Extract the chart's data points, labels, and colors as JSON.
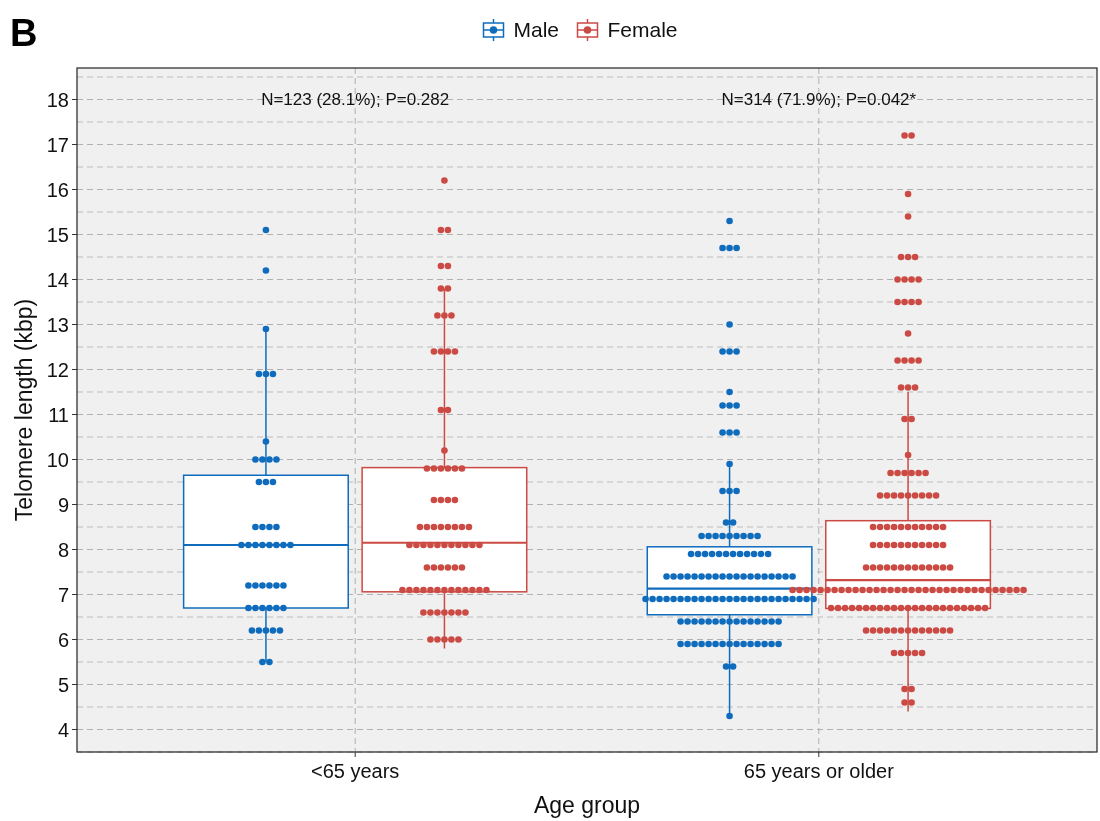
{
  "chart_data": {
    "type": "box",
    "xlabel": "Age group",
    "ylabel": "Telomere length (kbp)",
    "categories": [
      "<65 years",
      "65 years or older"
    ],
    "ylim": [
      3.5,
      18.7
    ],
    "yticks": [
      4,
      5,
      6,
      7,
      8,
      9,
      10,
      11,
      12,
      13,
      14,
      15,
      16,
      17,
      18
    ],
    "grid": true,
    "legend": "top",
    "annotations": [
      "B",
      "N=123 (28.1%); P=0.282",
      "N=314 (71.9%); P=0.042*"
    ],
    "series": [
      {
        "name": "Male",
        "color": "#0f6cbd",
        "boxes": [
          {
            "low": 5.5,
            "q1": 6.7,
            "median": 8.1,
            "q3": 9.65,
            "high": 12.9
          },
          {
            "low": 4.3,
            "q1": 6.55,
            "median": 7.13,
            "q3": 8.06,
            "high": 9.9
          }
        ]
      },
      {
        "name": "Female",
        "color": "#cc4a44",
        "boxes": [
          {
            "low": 5.8,
            "q1": 7.06,
            "median": 8.15,
            "q3": 9.82,
            "high": 13.8
          },
          {
            "low": 4.4,
            "q1": 6.69,
            "median": 7.32,
            "q3": 8.64,
            "high": 11.5
          }
        ]
      },
      {
        "type": "scatter",
        "color": "#0f6cbd",
        "x": [
          "<65 years",
          "<65 years",
          "<65 years",
          "<65 years",
          "<65 years",
          "<65 years",
          "<65 years",
          "<65 years",
          "<65 years",
          "<65 years",
          "<65 years",
          "<65 years",
          "<65 years",
          "<65 years",
          "<65 years",
          "<65 years",
          "<65 years",
          "<65 years",
          "<65 years",
          "<65 years",
          "<65 years",
          "<65 years",
          "<65 years",
          "<65 years",
          "<65 years",
          "<65 years",
          "<65 years",
          "<65 years",
          "<65 years",
          "<65 years",
          "<65 years",
          "<65 years",
          "<65 years",
          "<65 years",
          "<65 years",
          "<65 years",
          "<65 years",
          "<65 years",
          "<65 years",
          "<65 years",
          "<65 years",
          "<65 years",
          "<65 years",
          "<65 years",
          "<65 years",
          "65 years or older",
          "65 years or older",
          "65 years or older",
          "65 years or older",
          "65 years or older",
          "65 years or older",
          "65 years or older",
          "65 years or older",
          "65 years or older",
          "65 years or older",
          "65 years or older",
          "65 years or older",
          "65 years or older",
          "65 years or older",
          "65 years or older",
          "65 years or older",
          "65 years or older",
          "65 years or older",
          "65 years or older",
          "65 years or older",
          "65 years or older",
          "65 years or older",
          "65 years or older",
          "65 years or older",
          "65 years or older",
          "65 years or older",
          "65 years or older",
          "65 years or older",
          "65 years or older",
          "65 years or older",
          "65 years or older",
          "65 years or older",
          "65 years or older",
          "65 years or older",
          "65 years or older",
          "65 years or older",
          "65 years or older",
          "65 years or older",
          "65 years or older",
          "65 years or older",
          "65 years or older",
          "65 years or older",
          "65 years or older",
          "65 years or older",
          "65 years or older",
          "65 years or older",
          "65 years or older",
          "65 years or older",
          "65 years or older",
          "65 years or older",
          "65 years or older",
          "65 years or older",
          "65 years or older",
          "65 years or older",
          "65 years or older",
          "65 years or older",
          "65 years or older",
          "65 years or older",
          "65 years or older",
          "65 years or older",
          "65 years or older",
          "65 years or older",
          "65 years or older",
          "65 years or older",
          "65 years or older",
          "65 years or older",
          "65 years or older",
          "65 years or older",
          "65 years or older",
          "65 years or older",
          "65 years or older",
          "65 years or older",
          "65 years or older",
          "65 years or older",
          "65 years or older",
          "65 years or older",
          "65 years or older",
          "65 years or older",
          "65 years or older",
          "65 years or older",
          "65 years or older",
          "65 years or older",
          "65 years or older",
          "65 years or older",
          "65 years or older",
          "65 years or older",
          "65 years or older",
          "65 years or older",
          "65 years or older",
          "65 years or older",
          "65 years or older",
          "65 years or older",
          "65 years or older",
          "65 years or older",
          "65 years or older",
          "65 years or older",
          "65 years or older",
          "65 years or older",
          "65 years or older",
          "65 years or older",
          "65 years or older",
          "65 years or older",
          "65 years or older",
          "65 years or older",
          "65 years or older",
          "65 years or older",
          "65 years or older",
          "65 years or older",
          "65 years or older",
          "65 years or older",
          "65 years or older",
          "65 years or older",
          "65 years or older",
          "65 years or older",
          "65 years or older",
          "65 years or older",
          "65 years or older",
          "65 years or older",
          "65 years or older"
        ],
        "values": [
          15.1,
          14.2,
          12.9,
          11.9,
          11.9,
          11.9,
          10.4,
          10.0,
          10.0,
          10.0,
          10.0,
          9.5,
          9.5,
          9.5,
          8.5,
          8.5,
          8.5,
          8.5,
          8.1,
          8.1,
          8.1,
          8.1,
          8.1,
          8.1,
          8.1,
          8.1,
          7.2,
          7.2,
          7.2,
          7.2,
          7.2,
          7.2,
          6.7,
          6.7,
          6.7,
          6.7,
          6.7,
          6.7,
          6.2,
          6.2,
          6.2,
          6.2,
          6.2,
          5.5,
          5.5,
          15.3,
          14.7,
          14.7,
          14.7,
          13.0,
          12.4,
          12.4,
          12.4,
          11.5,
          11.2,
          11.2,
          11.2,
          10.6,
          10.6,
          10.6,
          9.9,
          9.3,
          9.3,
          9.3,
          8.6,
          8.6,
          8.3,
          8.3,
          8.3,
          8.3,
          8.3,
          8.3,
          8.3,
          8.3,
          8.3,
          7.9,
          7.9,
          7.9,
          7.9,
          7.9,
          7.9,
          7.9,
          7.9,
          7.9,
          7.9,
          7.9,
          7.9,
          7.4,
          7.4,
          7.4,
          7.4,
          7.4,
          7.4,
          7.4,
          7.4,
          7.4,
          7.4,
          7.4,
          7.4,
          7.4,
          7.4,
          7.4,
          7.4,
          7.4,
          7.4,
          7.4,
          6.9,
          6.9,
          6.9,
          6.9,
          6.9,
          6.9,
          6.9,
          6.9,
          6.9,
          6.9,
          6.9,
          6.9,
          6.9,
          6.9,
          6.9,
          6.9,
          6.9,
          6.9,
          6.9,
          6.9,
          6.9,
          6.9,
          6.9,
          6.9,
          6.9,
          6.4,
          6.4,
          6.4,
          6.4,
          6.4,
          6.4,
          6.4,
          6.4,
          6.4,
          6.4,
          6.4,
          6.4,
          6.4,
          6.4,
          6.4,
          5.9,
          5.9,
          5.9,
          5.9,
          5.9,
          5.9,
          5.9,
          5.9,
          5.9,
          5.9,
          5.9,
          5.9,
          5.9,
          5.9,
          5.9,
          5.4,
          5.4,
          4.3
        ]
      },
      {
        "type": "scatter",
        "color": "#cc4a44",
        "x": [
          "<65 years",
          "<65 years",
          "<65 years",
          "<65 years",
          "<65 years",
          "<65 years",
          "<65 years",
          "<65 years",
          "<65 years",
          "<65 years",
          "<65 years",
          "<65 years",
          "<65 years",
          "<65 years",
          "<65 years",
          "<65 years",
          "<65 years",
          "<65 years",
          "<65 years",
          "<65 years",
          "<65 years",
          "<65 years",
          "<65 years",
          "<65 years",
          "<65 years",
          "<65 years",
          "<65 years",
          "<65 years",
          "<65 years",
          "<65 years",
          "<65 years",
          "<65 years",
          "<65 years",
          "<65 years",
          "<65 years",
          "<65 years",
          "<65 years",
          "<65 years",
          "<65 years",
          "<65 years",
          "<65 years",
          "<65 years",
          "<65 years",
          "<65 years",
          "<65 years",
          "<65 years",
          "<65 years",
          "<65 years",
          "<65 years",
          "<65 years",
          "<65 years",
          "<65 years",
          "<65 years",
          "<65 years",
          "<65 years",
          "<65 years",
          "<65 years",
          "<65 years",
          "<65 years",
          "<65 years",
          "<65 years",
          "<65 years",
          "<65 years",
          "<65 years",
          "<65 years",
          "<65 years",
          "<65 years",
          "<65 years",
          "<65 years",
          "<65 years",
          "<65 years",
          "<65 years",
          "<65 years",
          "<65 years",
          "<65 years",
          "<65 years",
          "<65 years",
          "65 years or older",
          "65 years or older",
          "65 years or older",
          "65 years or older",
          "65 years or older",
          "65 years or older",
          "65 years or older",
          "65 years or older",
          "65 years or older",
          "65 years or older",
          "65 years or older",
          "65 years or older",
          "65 years or older",
          "65 years or older",
          "65 years or older",
          "65 years or older",
          "65 years or older",
          "65 years or older",
          "65 years or older",
          "65 years or older",
          "65 years or older",
          "65 years or older",
          "65 years or older",
          "65 years or older",
          "65 years or older",
          "65 years or older",
          "65 years or older",
          "65 years or older",
          "65 years or older",
          "65 years or older",
          "65 years or older",
          "65 years or older",
          "65 years or older",
          "65 years or older",
          "65 years or older",
          "65 years or older",
          "65 years or older",
          "65 years or older",
          "65 years or older",
          "65 years or older",
          "65 years or older",
          "65 years or older",
          "65 years or older",
          "65 years or older",
          "65 years or older",
          "65 years or older",
          "65 years or older",
          "65 years or older",
          "65 years or older",
          "65 years or older",
          "65 years or older",
          "65 years or older",
          "65 years or older",
          "65 years or older",
          "65 years or older",
          "65 years or older",
          "65 years or older",
          "65 years or older",
          "65 years or older",
          "65 years or older",
          "65 years or older",
          "65 years or older",
          "65 years or older",
          "65 years or older",
          "65 years or older",
          "65 years or older",
          "65 years or older",
          "65 years or older",
          "65 years or older",
          "65 years or older",
          "65 years or older",
          "65 years or older",
          "65 years or older",
          "65 years or older",
          "65 years or older",
          "65 years or older",
          "65 years or older",
          "65 years or older",
          "65 years or older",
          "65 years or older",
          "65 years or older",
          "65 years or older",
          "65 years or older",
          "65 years or older",
          "65 years or older",
          "65 years or older",
          "65 years or older",
          "65 years or older",
          "65 years or older",
          "65 years or older",
          "65 years or older",
          "65 years or older",
          "65 years or older",
          "65 years or older",
          "65 years or older",
          "65 years or older",
          "65 years or older",
          "65 years or older",
          "65 years or older",
          "65 years or older",
          "65 years or older",
          "65 years or older",
          "65 years or older",
          "65 years or older",
          "65 years or older",
          "65 years or older",
          "65 years or older",
          "65 years or older",
          "65 years or older",
          "65 years or older",
          "65 years or older",
          "65 years or older",
          "65 years or older",
          "65 years or older",
          "65 years or older",
          "65 years or older",
          "65 years or older",
          "65 years or older",
          "65 years or older",
          "65 years or older",
          "65 years or older",
          "65 years or older",
          "65 years or older",
          "65 years or older",
          "65 years or older",
          "65 years or older",
          "65 years or older",
          "65 years or older",
          "65 years or older",
          "65 years or older",
          "65 years or older",
          "65 years or older",
          "65 years or older",
          "65 years or older",
          "65 years or older",
          "65 years or older",
          "65 years or older",
          "65 years or older",
          "65 years or older",
          "65 years or older",
          "65 years or older",
          "65 years or older",
          "65 years or older",
          "65 years or older",
          "65 years or older",
          "65 years or older",
          "65 years or older",
          "65 years or older",
          "65 years or older",
          "65 years or older",
          "65 years or older",
          "65 years or older",
          "65 years or older",
          "65 years or older",
          "65 years or older"
        ],
        "values": [
          16.2,
          15.1,
          15.1,
          14.3,
          14.3,
          13.8,
          13.8,
          13.2,
          13.2,
          13.2,
          12.4,
          12.4,
          12.4,
          12.4,
          11.1,
          11.1,
          10.2,
          9.8,
          9.8,
          9.8,
          9.8,
          9.8,
          9.8,
          9.1,
          9.1,
          9.1,
          9.1,
          8.5,
          8.5,
          8.5,
          8.5,
          8.5,
          8.5,
          8.5,
          8.5,
          8.1,
          8.1,
          8.1,
          8.1,
          8.1,
          8.1,
          8.1,
          8.1,
          8.1,
          8.1,
          8.1,
          7.6,
          7.6,
          7.6,
          7.6,
          7.6,
          7.6,
          7.1,
          7.1,
          7.1,
          7.1,
          7.1,
          7.1,
          7.1,
          7.1,
          7.1,
          7.1,
          7.1,
          7.1,
          7.1,
          6.6,
          6.6,
          6.6,
          6.6,
          6.6,
          6.6,
          6.6,
          6.0,
          6.0,
          6.0,
          6.0,
          6.0,
          17.2,
          17.2,
          15.9,
          15.4,
          14.5,
          14.5,
          14.5,
          14.0,
          14.0,
          14.0,
          14.0,
          13.5,
          13.5,
          13.5,
          13.5,
          12.8,
          12.2,
          12.2,
          12.2,
          12.2,
          11.6,
          11.6,
          11.6,
          10.9,
          10.9,
          10.1,
          9.7,
          9.7,
          9.7,
          9.7,
          9.7,
          9.7,
          9.2,
          9.2,
          9.2,
          9.2,
          9.2,
          9.2,
          9.2,
          9.2,
          9.2,
          8.5,
          8.5,
          8.5,
          8.5,
          8.5,
          8.5,
          8.5,
          8.5,
          8.5,
          8.5,
          8.5,
          8.1,
          8.1,
          8.1,
          8.1,
          8.1,
          8.1,
          8.1,
          8.1,
          8.1,
          8.1,
          8.1,
          7.6,
          7.6,
          7.6,
          7.6,
          7.6,
          7.6,
          7.6,
          7.6,
          7.6,
          7.6,
          7.6,
          7.6,
          7.6,
          7.1,
          7.1,
          7.1,
          7.1,
          7.1,
          7.1,
          7.1,
          7.1,
          7.1,
          7.1,
          7.1,
          7.1,
          7.1,
          7.1,
          7.1,
          7.1,
          7.1,
          7.1,
          7.1,
          7.1,
          7.1,
          7.1,
          7.1,
          7.1,
          7.1,
          7.1,
          7.1,
          7.1,
          7.1,
          7.1,
          7.1,
          7.1,
          7.1,
          7.1,
          6.7,
          6.7,
          6.7,
          6.7,
          6.7,
          6.7,
          6.7,
          6.7,
          6.7,
          6.7,
          6.7,
          6.7,
          6.7,
          6.7,
          6.7,
          6.7,
          6.7,
          6.7,
          6.7,
          6.7,
          6.7,
          6.7,
          6.7,
          6.2,
          6.2,
          6.2,
          6.2,
          6.2,
          6.2,
          6.2,
          6.2,
          6.2,
          6.2,
          6.2,
          6.2,
          6.2,
          5.7,
          5.7,
          5.7,
          5.7,
          5.7,
          4.9,
          4.9,
          4.6,
          4.6
        ]
      }
    ]
  }
}
